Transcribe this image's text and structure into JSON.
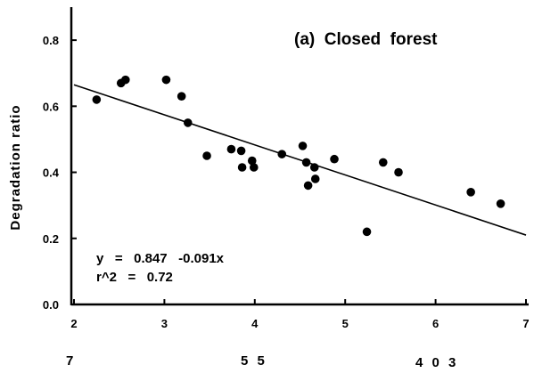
{
  "chart_data": {
    "type": "scatter",
    "title": "(a)  Closed  forest",
    "xlabel": "",
    "ylabel": "Degradation  ratio",
    "xlim": [
      2,
      7
    ],
    "ylim": [
      0.0,
      0.9
    ],
    "xticks": [
      "2",
      "3",
      "4",
      "5",
      "6",
      "7"
    ],
    "xtick_values": [
      2,
      3,
      4,
      5,
      6,
      7
    ],
    "yticks": [
      "0.0",
      "0.2",
      "0.4",
      "0.6",
      "0.8"
    ],
    "ytick_values": [
      0.0,
      0.2,
      0.4,
      0.6,
      0.8
    ],
    "series": [
      {
        "points": [
          {
            "x": 2.25,
            "y": 0.62
          },
          {
            "x": 2.52,
            "y": 0.67
          },
          {
            "x": 2.57,
            "y": 0.68
          },
          {
            "x": 3.02,
            "y": 0.68
          },
          {
            "x": 3.19,
            "y": 0.63
          },
          {
            "x": 3.26,
            "y": 0.55
          },
          {
            "x": 3.47,
            "y": 0.45
          },
          {
            "x": 3.74,
            "y": 0.47
          },
          {
            "x": 3.85,
            "y": 0.465
          },
          {
            "x": 3.86,
            "y": 0.415
          },
          {
            "x": 3.97,
            "y": 0.435
          },
          {
            "x": 3.99,
            "y": 0.415
          },
          {
            "x": 4.3,
            "y": 0.455
          },
          {
            "x": 4.53,
            "y": 0.48
          },
          {
            "x": 4.57,
            "y": 0.43
          },
          {
            "x": 4.59,
            "y": 0.36
          },
          {
            "x": 4.66,
            "y": 0.415
          },
          {
            "x": 4.67,
            "y": 0.38
          },
          {
            "x": 4.88,
            "y": 0.44
          },
          {
            "x": 5.24,
            "y": 0.22
          },
          {
            "x": 5.42,
            "y": 0.43
          },
          {
            "x": 5.59,
            "y": 0.4
          },
          {
            "x": 6.39,
            "y": 0.34
          },
          {
            "x": 6.72,
            "y": 0.305
          }
        ]
      }
    ],
    "regression": {
      "intercept": 0.847,
      "slope": -0.091
    },
    "annotations": {
      "equation": "y   =   0.847   -0.091x",
      "r2": "r^2   =   0.72"
    },
    "footer_labels": [
      "7",
      "5 5",
      "4 0 3"
    ],
    "grid": false,
    "legend": "none"
  }
}
